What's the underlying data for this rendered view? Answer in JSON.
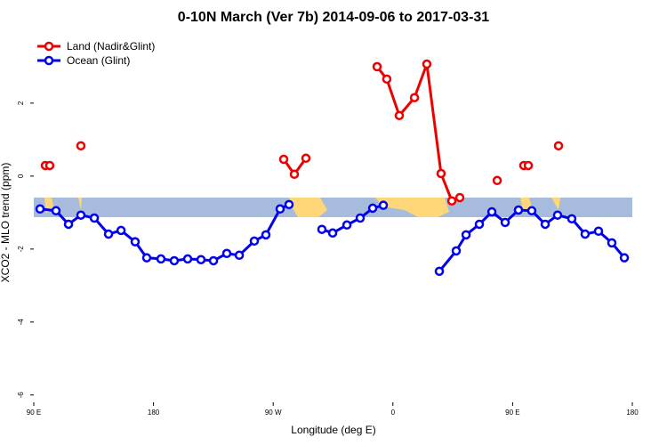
{
  "chart_data": {
    "type": "line",
    "title": "0-10N March (Ver 7b)   2014-09-06 to 2017-03-31",
    "x_label": "Longitude (deg E)",
    "y_label": "XCO2 - MLO trend (ppm)",
    "xlim": [
      90,
      540
    ],
    "ylim": [
      -6.2,
      3.9
    ],
    "xticks": [
      {
        "value": 90,
        "label": "90 E"
      },
      {
        "value": 180,
        "label": "180"
      },
      {
        "value": 270,
        "label": "90 W"
      },
      {
        "value": 360,
        "label": "0"
      },
      {
        "value": 450,
        "label": "90 E"
      },
      {
        "value": 540,
        "label": "180"
      }
    ],
    "yticks": [
      -6,
      -4,
      -2,
      0,
      2
    ],
    "legend": "top-left",
    "series": [
      {
        "name": "Land (Nadir&Glint)",
        "color": "#ee0000",
        "x": [
          98.7,
          null,
          102.0,
          null,
          125.4,
          null,
          277.9,
          285.9,
          294.6,
          null,
          348.1,
          355.4,
          364.8,
          376.2,
          385.5,
          396.2,
          404.3,
          410.3,
          null,
          438.4,
          null,
          458.4,
          null,
          461.8,
          null,
          484.5
        ],
        "values": [
          0.29,
          null,
          0.29,
          null,
          0.83,
          null,
          0.46,
          0.05,
          0.49,
          null,
          3.0,
          2.66,
          1.66,
          2.15,
          3.07,
          0.07,
          -0.68,
          -0.59,
          null,
          -0.12,
          null,
          0.29,
          null,
          0.29,
          null,
          0.83
        ]
      },
      {
        "name": "Ocean (Glint)",
        "color": "#0000ee",
        "x": [
          94.7,
          106.7,
          116.1,
          125.4,
          135.5,
          146.2,
          155.6,
          166.2,
          174.9,
          185.6,
          195.6,
          205.7,
          215.7,
          225.1,
          235.1,
          244.5,
          255.8,
          264.5,
          275.2,
          281.9,
          null,
          306.6,
          314.7,
          325.4,
          335.4,
          344.8,
          352.8,
          null,
          394.9,
          407.6,
          415.0,
          425.0,
          434.4,
          444.4,
          454.4,
          464.4,
          474.5,
          483.8,
          494.5,
          504.5,
          514.6,
          524.6,
          534.0
        ],
        "values": [
          -0.9,
          -0.95,
          -1.32,
          -1.07,
          -1.15,
          -1.59,
          -1.49,
          -1.8,
          -2.24,
          -2.27,
          -2.32,
          -2.27,
          -2.29,
          -2.32,
          -2.12,
          -2.17,
          -1.78,
          -1.61,
          -0.9,
          -0.78,
          null,
          -1.46,
          -1.56,
          -1.34,
          -1.15,
          -0.88,
          -0.8,
          null,
          -2.61,
          -2.05,
          -1.61,
          -1.32,
          -0.98,
          -1.27,
          -0.93,
          -0.95,
          -1.32,
          -1.07,
          -1.17,
          -1.59,
          -1.51,
          -1.83,
          -2.24
        ]
      }
    ]
  }
}
